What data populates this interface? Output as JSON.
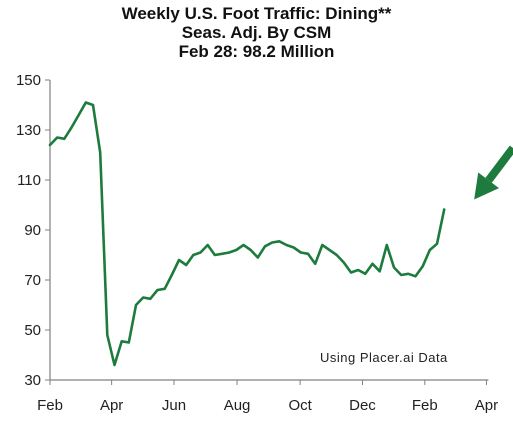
{
  "chart_data": {
    "type": "line",
    "title": "Weekly U.S. Foot Traffic: Dining**",
    "subtitle": "Seas. Adj. By CSM",
    "subtitle2": "Feb 28: 98.2 Million",
    "annotation": "Using Placer.ai Data",
    "xlabel": "",
    "ylabel": "",
    "ylim": [
      30,
      150
    ],
    "yticks": [
      "30",
      "50",
      "70",
      "90",
      "110",
      "130",
      "150"
    ],
    "xlim_weeks": [
      0,
      60
    ],
    "xticks": [
      {
        "label": "Feb",
        "week": 0
      },
      {
        "label": "Apr",
        "week": 8.6
      },
      {
        "label": "Jun",
        "week": 17.3
      },
      {
        "label": "Aug",
        "week": 26.1
      },
      {
        "label": "Oct",
        "week": 34.9
      },
      {
        "label": "Dec",
        "week": 43.6
      },
      {
        "label": "Feb",
        "week": 52.3
      },
      {
        "label": "Apr",
        "week": 60.9
      }
    ],
    "grid": false,
    "series_color": "#1e7b3e",
    "arrow_color": "#1e7b3e",
    "series": [
      {
        "values": [
          124,
          127,
          126.5,
          131,
          136,
          141,
          140,
          121,
          48,
          36,
          45.5,
          45,
          60,
          63,
          62.5,
          66,
          66.5,
          72,
          78,
          76,
          80,
          81,
          84,
          80,
          80.5,
          81,
          82,
          84,
          82,
          79,
          83.5,
          85,
          85.5,
          84,
          83,
          81,
          80.5,
          76.5,
          84,
          82,
          80,
          77,
          73,
          74,
          72.5,
          76.5,
          73.5,
          84,
          75,
          72,
          72.5,
          71.5,
          75.5,
          82,
          84.5,
          98.2
        ]
      }
    ]
  }
}
